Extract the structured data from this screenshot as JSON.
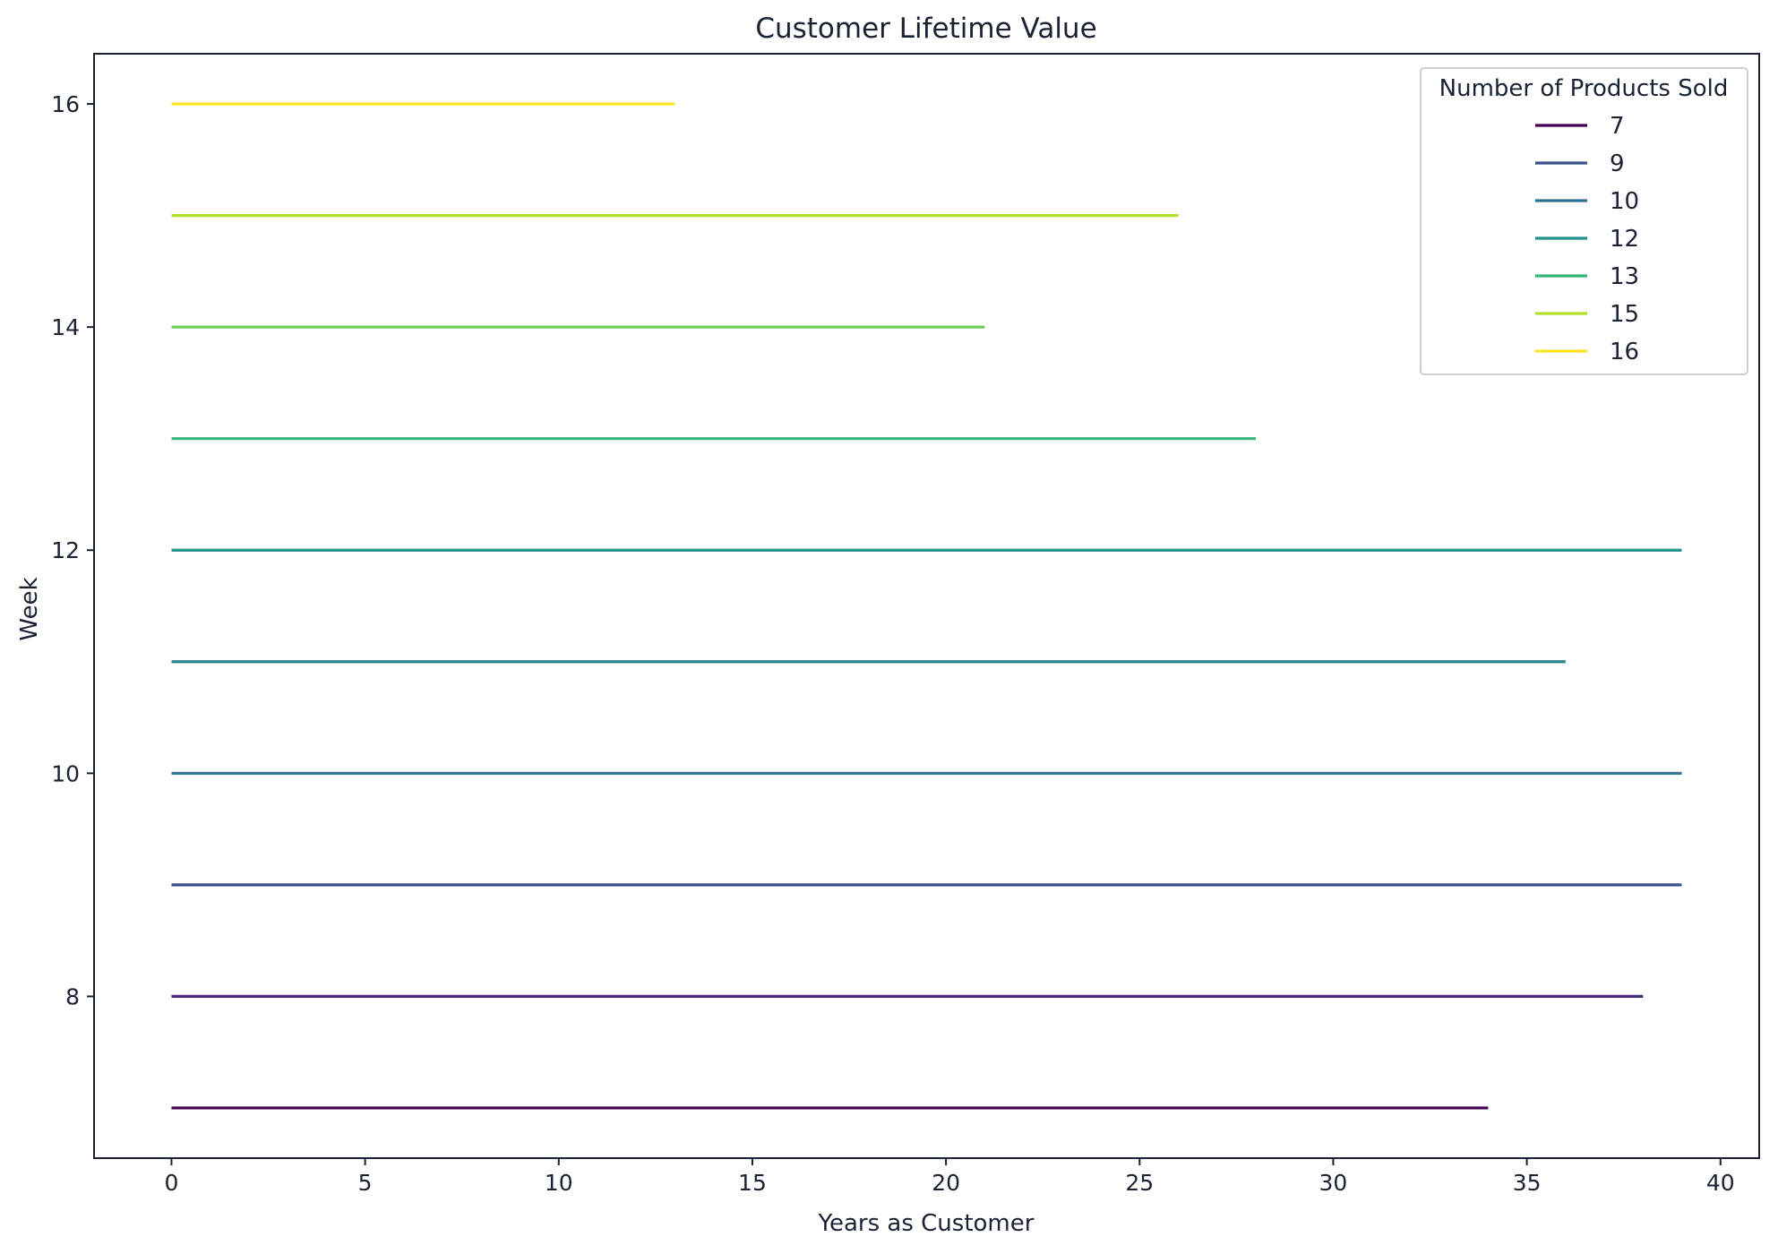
{
  "chart_data": {
    "type": "line",
    "title": "Customer Lifetime Value",
    "xlabel": "Years as Customer",
    "ylabel": "Week",
    "xlim": [
      -2,
      41
    ],
    "ylim": [
      6.55,
      16.45
    ],
    "xticks": [
      0,
      5,
      10,
      15,
      20,
      25,
      30,
      35,
      40
    ],
    "yticks": [
      8,
      10,
      12,
      14,
      16
    ],
    "grid": false,
    "legend": {
      "title": "Number of Products Sold",
      "placement": "top-right",
      "entries": [
        {
          "label": "7",
          "color": "#440154"
        },
        {
          "label": "9",
          "color": "#3b528b"
        },
        {
          "label": "10",
          "color": "#2c728e"
        },
        {
          "label": "12",
          "color": "#21918c"
        },
        {
          "label": "13",
          "color": "#35b779"
        },
        {
          "label": "15",
          "color": "#b5de2b"
        },
        {
          "label": "16",
          "color": "#fde725"
        }
      ]
    },
    "series": [
      {
        "y": 7,
        "x": [
          0,
          34
        ],
        "color": "#440154"
      },
      {
        "y": 8,
        "x": [
          0,
          38
        ],
        "color": "#472d7b"
      },
      {
        "y": 9,
        "x": [
          0,
          39
        ],
        "color": "#3b528b"
      },
      {
        "y": 10,
        "x": [
          0,
          39
        ],
        "color": "#2c728e"
      },
      {
        "y": 11,
        "x": [
          0,
          36
        ],
        "color": "#27858e"
      },
      {
        "y": 12,
        "x": [
          0,
          39
        ],
        "color": "#21918c"
      },
      {
        "y": 13,
        "x": [
          0,
          28
        ],
        "color": "#35b779"
      },
      {
        "y": 14,
        "x": [
          0,
          21
        ],
        "color": "#6ece58"
      },
      {
        "y": 15,
        "x": [
          0,
          26
        ],
        "color": "#b5de2b"
      },
      {
        "y": 16,
        "x": [
          0,
          13
        ],
        "color": "#fde725"
      }
    ]
  }
}
